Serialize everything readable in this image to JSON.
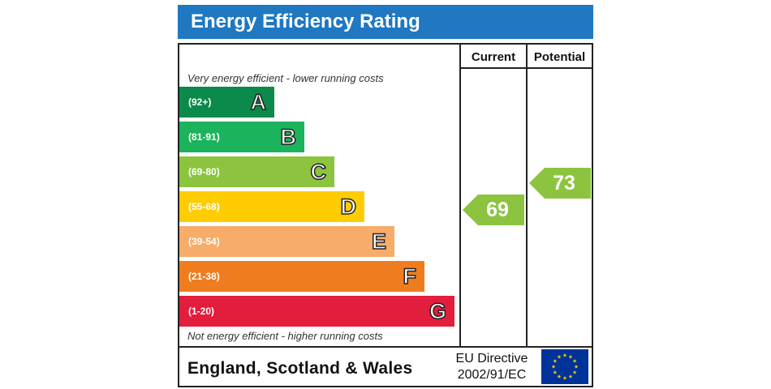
{
  "header": {
    "title": "Energy Efficiency Rating",
    "background": "#1f78c1"
  },
  "columns": {
    "current": "Current",
    "potential": "Potential"
  },
  "notes": {
    "top": "Very energy efficient - lower running costs",
    "bottom": "Not energy efficient - higher running costs"
  },
  "footer": {
    "region": "England, Scotland & Wales",
    "directive_line1": "EU Directive",
    "directive_line2": "2002/91/EC",
    "flag_icon": "eu-flag-icon",
    "flag_color": "#003399",
    "star_color": "#ffcc00"
  },
  "chart_data": {
    "type": "bar",
    "title": "Energy Efficiency Rating",
    "categories": [
      "A",
      "B",
      "C",
      "D",
      "E",
      "F",
      "G"
    ],
    "bands": [
      {
        "letter": "A",
        "range": "(92+)",
        "min": 92,
        "max": 100,
        "color": "#0c8a4b"
      },
      {
        "letter": "B",
        "range": "(81-91)",
        "min": 81,
        "max": 91,
        "color": "#1bb35b"
      },
      {
        "letter": "C",
        "range": "(69-80)",
        "min": 69,
        "max": 80,
        "color": "#8cc43f"
      },
      {
        "letter": "D",
        "range": "(55-68)",
        "min": 55,
        "max": 68,
        "color": "#ffcc00"
      },
      {
        "letter": "E",
        "range": "(39-54)",
        "min": 39,
        "max": 54,
        "color": "#f8ac6a"
      },
      {
        "letter": "F",
        "range": "(21-38)",
        "min": 21,
        "max": 38,
        "color": "#ef7d20"
      },
      {
        "letter": "G",
        "range": "(1-20)",
        "min": 1,
        "max": 20,
        "color": "#e31d3c"
      }
    ],
    "series": [
      {
        "name": "Current",
        "value": 69,
        "band": "C",
        "color": "#8cc43f"
      },
      {
        "name": "Potential",
        "value": 73,
        "band": "C",
        "color": "#8cc43f"
      }
    ]
  }
}
